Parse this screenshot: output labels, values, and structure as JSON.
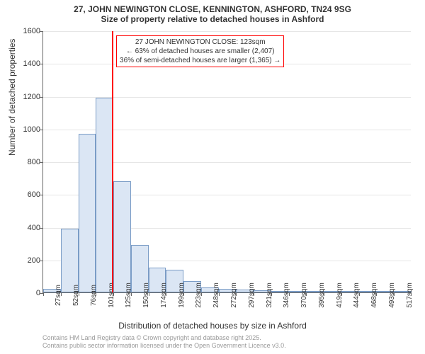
{
  "title_main": "27, JOHN NEWINGTON CLOSE, KENNINGTON, ASHFORD, TN24 9SG",
  "title_sub": "Size of property relative to detached houses in Ashford",
  "y_axis_label": "Number of detached properties",
  "x_axis_label": "Distribution of detached houses by size in Ashford",
  "chart": {
    "type": "histogram",
    "ylim": [
      0,
      1600
    ],
    "ytick_step": 200,
    "x_start": 27,
    "x_step": 24.5,
    "x_unit": "sqm",
    "bar_count": 21,
    "x_labels": [
      "27sqm",
      "52sqm",
      "76sqm",
      "101sqm",
      "125sqm",
      "150sqm",
      "174sqm",
      "199sqm",
      "223sqm",
      "248sqm",
      "272sqm",
      "297sqm",
      "321sqm",
      "346sqm",
      "370sqm",
      "395sqm",
      "419sqm",
      "444sqm",
      "468sqm",
      "493sqm",
      "517sqm"
    ],
    "values": [
      20,
      390,
      970,
      1190,
      680,
      290,
      150,
      140,
      70,
      30,
      20,
      18,
      15,
      10,
      8,
      5,
      4,
      3,
      2,
      2,
      1
    ],
    "bar_fill": "#dbe6f4",
    "bar_border": "#7a9cc6",
    "grid_color": "#e6e6e6",
    "axis_color": "#666666",
    "background": "#ffffff",
    "ref_value_sqm": 123,
    "ref_color": "#ff0000",
    "annotation": {
      "line1": "27 JOHN NEWINGTON CLOSE: 123sqm",
      "line2": "← 63% of detached houses are smaller (2,407)",
      "line3": "36% of semi-detached houses are larger (1,365) →"
    },
    "title_fontsize": 12,
    "label_fontsize": 12,
    "tick_fontsize": 10
  },
  "footer_line1": "Contains HM Land Registry data © Crown copyright and database right 2025.",
  "footer_line2": "Contains public sector information licensed under the Open Government Licence v3.0."
}
